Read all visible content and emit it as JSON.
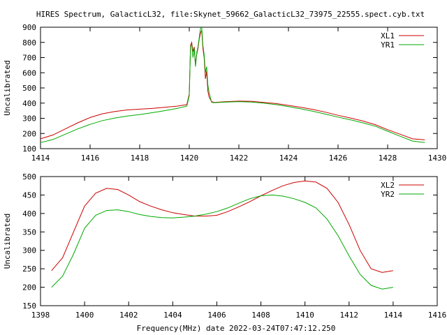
{
  "title": "HIRES Spectrum, GalacticL32, file:Skynet_59662_GalacticL32_73975_22555.spect.cyb.txt",
  "footer_label": "Frequency(MHz) date 2022-03-24T07:47:12.250",
  "chart_data": [
    {
      "type": "line",
      "ylabel": "Uncalibrated",
      "xlim": [
        1414,
        1430
      ],
      "ylim": [
        100,
        900
      ],
      "xticks": [
        1414,
        1416,
        1418,
        1420,
        1422,
        1424,
        1426,
        1428,
        1430
      ],
      "yticks": [
        100,
        200,
        300,
        400,
        500,
        600,
        700,
        800,
        900
      ],
      "legend": "top-right",
      "grid": false,
      "series": [
        {
          "name": "XL1",
          "color": "#cc0000",
          "x": [
            1414.0,
            1414.5,
            1415.0,
            1415.5,
            1416.0,
            1416.5,
            1417.0,
            1417.5,
            1418.0,
            1418.5,
            1419.0,
            1419.5,
            1419.9,
            1420.0,
            1420.05,
            1420.1,
            1420.15,
            1420.2,
            1420.25,
            1420.3,
            1420.35,
            1420.4,
            1420.45,
            1420.5,
            1420.55,
            1420.6,
            1420.65,
            1420.7,
            1420.75,
            1420.8,
            1420.9,
            1421.0,
            1421.5,
            1422.0,
            1422.5,
            1423.0,
            1423.5,
            1424.0,
            1424.5,
            1425.0,
            1425.5,
            1426.0,
            1426.5,
            1427.0,
            1427.5,
            1428.0,
            1428.5,
            1429.0,
            1429.5
          ],
          "y": [
            165,
            190,
            230,
            270,
            305,
            330,
            345,
            355,
            360,
            365,
            372,
            380,
            390,
            460,
            780,
            800,
            740,
            770,
            650,
            720,
            760,
            820,
            860,
            880,
            760,
            700,
            560,
            610,
            480,
            440,
            410,
            405,
            410,
            413,
            412,
            405,
            397,
            385,
            372,
            358,
            340,
            320,
            302,
            282,
            258,
            225,
            195,
            165,
            158
          ]
        },
        {
          "name": "YR1",
          "color": "#00aa00",
          "x": [
            1414.0,
            1414.5,
            1415.0,
            1415.5,
            1416.0,
            1416.5,
            1417.0,
            1417.5,
            1418.0,
            1418.5,
            1419.0,
            1419.5,
            1419.9,
            1420.0,
            1420.05,
            1420.1,
            1420.15,
            1420.2,
            1420.25,
            1420.3,
            1420.35,
            1420.4,
            1420.45,
            1420.5,
            1420.55,
            1420.6,
            1420.65,
            1420.7,
            1420.75,
            1420.8,
            1420.9,
            1421.0,
            1421.5,
            1422.0,
            1422.5,
            1423.0,
            1423.5,
            1424.0,
            1424.5,
            1425.0,
            1425.5,
            1426.0,
            1426.5,
            1427.0,
            1427.5,
            1428.0,
            1428.5,
            1429.0,
            1429.5
          ],
          "y": [
            140,
            160,
            195,
            230,
            260,
            285,
            302,
            315,
            325,
            337,
            350,
            365,
            380,
            450,
            770,
            790,
            700,
            760,
            640,
            730,
            770,
            830,
            890,
            900,
            780,
            720,
            600,
            640,
            520,
            470,
            405,
            403,
            407,
            410,
            407,
            400,
            390,
            377,
            362,
            346,
            327,
            308,
            290,
            270,
            248,
            215,
            182,
            150,
            140
          ]
        }
      ]
    },
    {
      "type": "line",
      "ylabel": "Uncalibrated",
      "xlim": [
        1398,
        1416
      ],
      "ylim": [
        150,
        500
      ],
      "xticks": [
        1398,
        1400,
        1402,
        1404,
        1406,
        1408,
        1410,
        1412,
        1414,
        1416
      ],
      "yticks": [
        150,
        200,
        250,
        300,
        350,
        400,
        450,
        500
      ],
      "legend": "top-right",
      "grid": false,
      "series": [
        {
          "name": "XL2",
          "color": "#cc0000",
          "x": [
            1398.5,
            1399.0,
            1399.5,
            1400.0,
            1400.5,
            1401.0,
            1401.5,
            1402.0,
            1402.5,
            1403.0,
            1403.5,
            1404.0,
            1404.5,
            1405.0,
            1405.5,
            1406.0,
            1406.5,
            1407.0,
            1407.5,
            1408.0,
            1408.5,
            1409.0,
            1409.5,
            1410.0,
            1410.5,
            1411.0,
            1411.5,
            1412.0,
            1412.5,
            1413.0,
            1413.5,
            1414.0
          ],
          "y": [
            245,
            280,
            350,
            420,
            455,
            468,
            465,
            450,
            432,
            420,
            410,
            402,
            397,
            393,
            393,
            395,
            405,
            418,
            432,
            448,
            462,
            475,
            484,
            488,
            485,
            468,
            430,
            370,
            300,
            250,
            240,
            245
          ]
        },
        {
          "name": "YR2",
          "color": "#00aa00",
          "x": [
            1398.5,
            1399.0,
            1399.5,
            1400.0,
            1400.5,
            1401.0,
            1401.5,
            1402.0,
            1402.5,
            1403.0,
            1403.5,
            1404.0,
            1404.5,
            1405.0,
            1405.5,
            1406.0,
            1406.5,
            1407.0,
            1407.5,
            1408.0,
            1408.5,
            1409.0,
            1409.5,
            1410.0,
            1410.5,
            1411.0,
            1411.5,
            1412.0,
            1412.5,
            1413.0,
            1413.5,
            1414.0
          ],
          "y": [
            200,
            230,
            290,
            360,
            395,
            408,
            410,
            405,
            397,
            392,
            389,
            388,
            390,
            393,
            398,
            405,
            415,
            428,
            440,
            448,
            450,
            447,
            440,
            430,
            415,
            385,
            340,
            285,
            235,
            205,
            195,
            200
          ]
        }
      ]
    }
  ]
}
